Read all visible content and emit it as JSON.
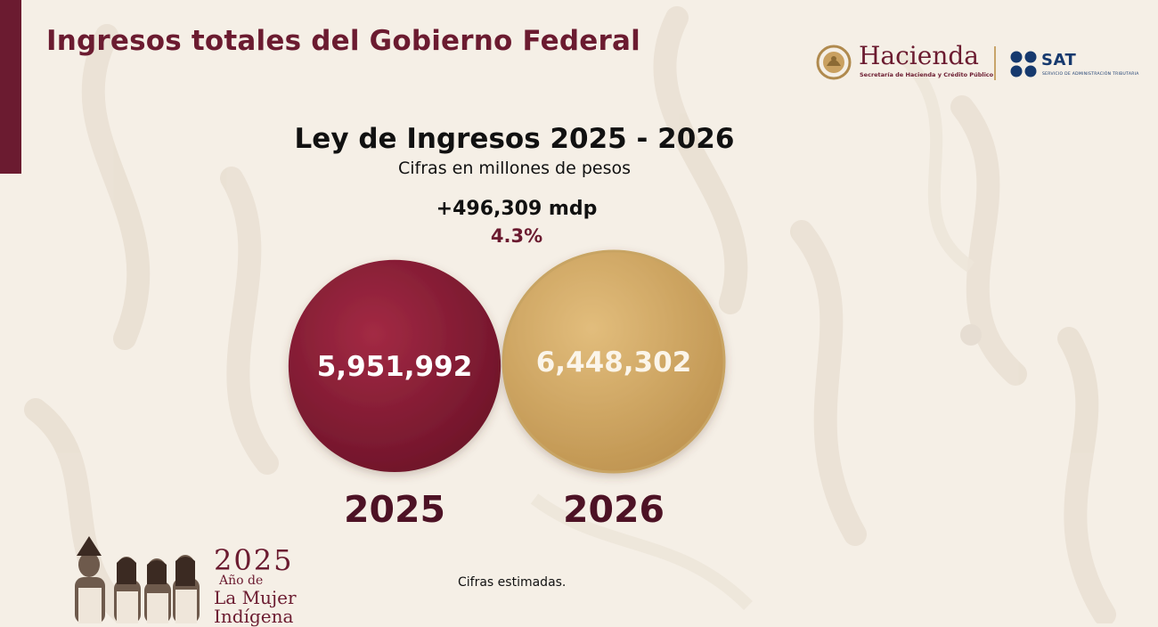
{
  "header": {
    "title": "Ingresos totales del Gobierno Federal"
  },
  "logos": {
    "hacienda_name": "Hacienda",
    "hacienda_subtitle": "Secretaría de Hacienda y Crédito Público",
    "sat_name": "SAT",
    "sat_subtitle": "SERVICIO DE ADMINISTRACIÓN TRIBUTARIA"
  },
  "chart_data": {
    "type": "bubble",
    "title": "Ley de Ingresos 2025 - 2026",
    "subtitle": "Cifras en millones de pesos",
    "unit": "millones de pesos",
    "categories": [
      "2025",
      "2026"
    ],
    "values": [
      5951992,
      6448302
    ],
    "value_labels": [
      "5,951,992",
      "6,448,302"
    ],
    "colors": [
      "#8d1d36",
      "#d4aa62"
    ],
    "difference": "+496,309 mdp",
    "percent_change": "4.3%",
    "footnote": "Cifras estimadas."
  },
  "campaign": {
    "year": "2025",
    "line1": "Año de",
    "line2": "La Mujer",
    "line3": "Indígena"
  },
  "theme": {
    "background": "#f5efe6",
    "primary": "#6b1b30",
    "gold": "#d4aa62",
    "sat_blue": "#16396e"
  }
}
